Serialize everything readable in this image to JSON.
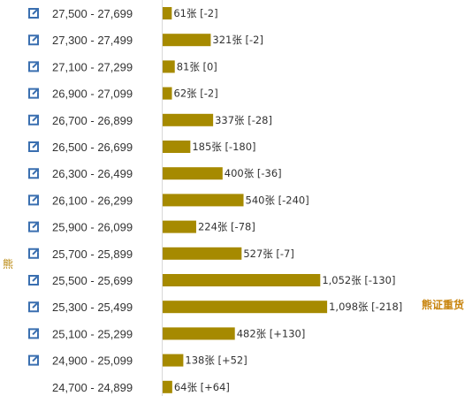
{
  "colors": {
    "bar": "#a68a00",
    "icon": "#3a6fb0",
    "text": "#333333",
    "accent": "#c8840e"
  },
  "side_label": "熊",
  "callout": {
    "text": "熊证重货",
    "row": 11
  },
  "chart_data": {
    "type": "bar",
    "orientation": "horizontal",
    "categories": [
      "27,500 - 27,699",
      "27,300 - 27,499",
      "27,100 - 27,299",
      "26,900 - 27,099",
      "26,700 - 26,899",
      "26,500 - 26,699",
      "26,300 - 26,499",
      "26,100 - 26,299",
      "25,900 - 26,099",
      "25,700 - 25,899",
      "25,500 - 25,699",
      "25,300 - 25,499",
      "25,100 - 25,299",
      "24,900 - 25,099",
      "24,700 - 24,899"
    ],
    "values": [
      61,
      321,
      81,
      62,
      337,
      185,
      400,
      540,
      224,
      527,
      1052,
      1098,
      482,
      138,
      64
    ],
    "changes": [
      "-2",
      "-2",
      "0",
      "-2",
      "-28",
      "-180",
      "-36",
      "-240",
      "-78",
      "-7",
      "-130",
      "-218",
      "+130",
      "+52",
      "+64"
    ],
    "value_labels": [
      "61张 [-2]",
      "321张 [-2]",
      "81张 [0]",
      "62张 [-2]",
      "337张 [-28]",
      "185张 [-180]",
      "400张 [-36]",
      "540张 [-240]",
      "224张 [-78]",
      "527张 [-7]",
      "1,052张 [-130]",
      "1,098张 [-218]",
      "482张 [+130]",
      "138张 [+52]",
      "64张 [+64]"
    ],
    "link_icons": [
      true,
      true,
      true,
      true,
      true,
      true,
      true,
      true,
      true,
      true,
      true,
      true,
      true,
      true,
      false
    ]
  }
}
